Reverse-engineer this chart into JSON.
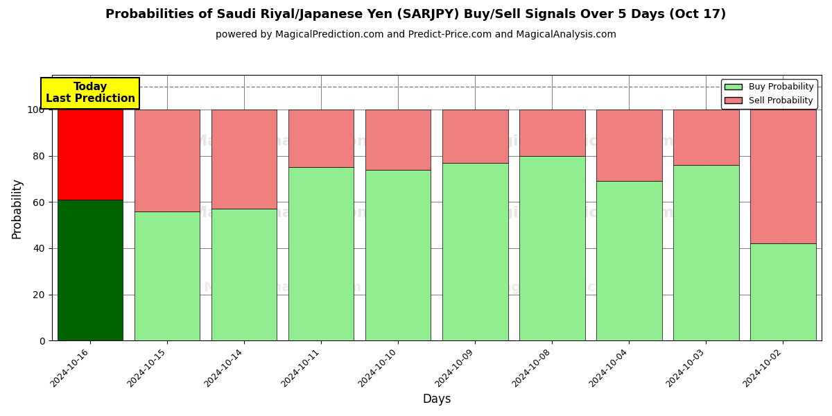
{
  "title": "Probabilities of Saudi Riyal/Japanese Yen (SARJPY) Buy/Sell Signals Over 5 Days (Oct 17)",
  "subtitle": "powered by MagicalPrediction.com and Predict-Price.com and MagicalAnalysis.com",
  "xlabel": "Days",
  "ylabel": "Probability",
  "dates": [
    "2024-10-16",
    "2024-10-15",
    "2024-10-14",
    "2024-10-11",
    "2024-10-10",
    "2024-10-09",
    "2024-10-08",
    "2024-10-04",
    "2024-10-03",
    "2024-10-02"
  ],
  "buy_values": [
    61,
    56,
    57,
    75,
    74,
    77,
    80,
    69,
    76,
    42
  ],
  "sell_values": [
    39,
    44,
    43,
    25,
    26,
    23,
    20,
    31,
    24,
    58
  ],
  "today_bar_index": 0,
  "today_buy_color": "#006400",
  "today_sell_color": "#FF0000",
  "normal_buy_color": "#90EE90",
  "normal_sell_color": "#F08080",
  "today_annotation": "Today\nLast Prediction",
  "annotation_bg_color": "#FFFF00",
  "ylim": [
    0,
    115
  ],
  "yticks": [
    0,
    20,
    40,
    60,
    80,
    100
  ],
  "dashed_line_y": 110,
  "legend_buy_label": "Buy Probability",
  "legend_sell_label": "Sell Probability",
  "bar_width": 0.85,
  "title_fontsize": 13,
  "subtitle_fontsize": 10,
  "axis_label_fontsize": 12
}
